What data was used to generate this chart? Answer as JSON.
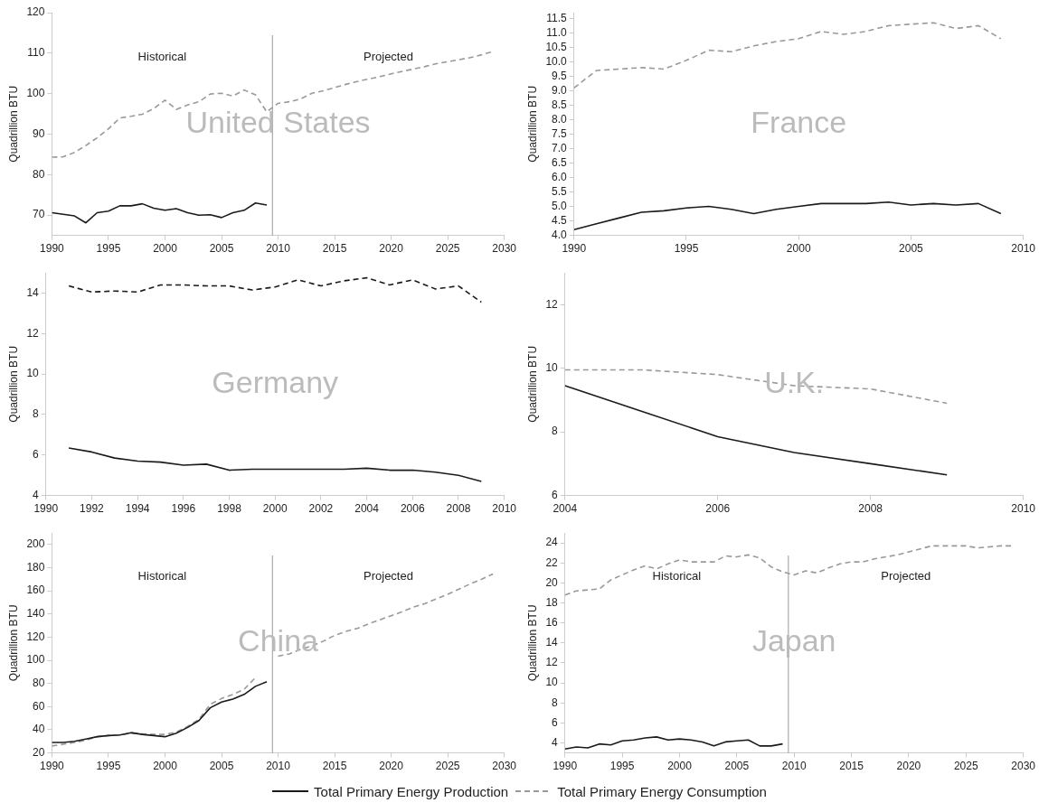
{
  "chart_data": [
    {
      "type": "line",
      "title": "United States",
      "ylabel": "Quadrillion BTU",
      "xlim": [
        1990,
        2030
      ],
      "xticks": [
        1990,
        1995,
        2000,
        2005,
        2010,
        2015,
        2020,
        2025,
        2030
      ],
      "ylim": [
        65,
        120
      ],
      "yticks": [
        70,
        80,
        90,
        100,
        110,
        120
      ],
      "grid": false,
      "legend": false,
      "marker": "none",
      "ref_lines": [
        {
          "axis": "x",
          "value": 2009.5,
          "color": "#999999"
        }
      ],
      "annotations": [
        "Historical",
        "Projected"
      ],
      "series": [
        {
          "color": "#1a1a1a",
          "line_style": "solid",
          "x": [
            1990,
            1991,
            1992,
            1993,
            1994,
            1995,
            1996,
            1997,
            1998,
            1999,
            2000,
            2001,
            2002,
            2003,
            2004,
            2005,
            2006,
            2007,
            2008,
            2009
          ],
          "values": [
            70.6,
            70.2,
            69.8,
            68.1,
            70.6,
            71.0,
            72.3,
            72.3,
            72.8,
            71.7,
            71.2,
            71.6,
            70.6,
            70.0,
            70.1,
            69.4,
            70.6,
            71.2,
            73.0,
            72.5
          ]
        },
        {
          "color": "#999999",
          "line_style": "dashed",
          "x": [
            1990,
            1991,
            1992,
            1993,
            1994,
            1995,
            1996,
            1997,
            1998,
            1999,
            2000,
            2001,
            2002,
            2003,
            2004,
            2005,
            2006,
            2007,
            2008,
            2009,
            2010,
            2011,
            2012,
            2013,
            2014,
            2015,
            2016,
            2017,
            2018,
            2019,
            2020,
            2021,
            2022,
            2023,
            2024,
            2025,
            2026,
            2027,
            2028,
            2029
          ],
          "values": [
            84.3,
            84.4,
            85.5,
            87.2,
            89.1,
            91.3,
            94.0,
            94.4,
            94.9,
            96.3,
            98.4,
            96.1,
            97.2,
            98.0,
            99.9,
            100.1,
            99.4,
            100.9,
            99.7,
            95.5,
            97.6,
            98.0,
            98.7,
            100.1,
            100.7,
            101.5,
            102.3,
            103.0,
            103.6,
            104.2,
            104.9,
            105.5,
            106.1,
            106.7,
            107.4,
            107.9,
            108.4,
            108.9,
            109.6,
            110.4
          ]
        }
      ]
    },
    {
      "type": "line",
      "title": "France",
      "ylabel": "Quadrillion BTU",
      "xlim": [
        1990,
        2010
      ],
      "xticks": [
        1990,
        1995,
        2000,
        2005,
        2010
      ],
      "ylim": [
        4,
        11.7
      ],
      "yticks": [
        {
          "value": 4,
          "label": "4.0"
        },
        {
          "value": 4.5,
          "label": "4.5"
        },
        {
          "value": 5,
          "label": "5.0"
        },
        {
          "value": 5.5,
          "label": "5.5"
        },
        {
          "value": 6,
          "label": "6.0"
        },
        {
          "value": 6.5,
          "label": "6.5"
        },
        {
          "value": 7,
          "label": "7.0"
        },
        {
          "value": 7.5,
          "label": "7.5"
        },
        {
          "value": 8,
          "label": "8.0"
        },
        {
          "value": 8.5,
          "label": "8.5"
        },
        {
          "value": 9,
          "label": "9.0"
        },
        {
          "value": 9.5,
          "label": "9.5"
        },
        {
          "value": 10,
          "label": "10.0"
        },
        {
          "value": 10.5,
          "label": "10.5"
        },
        {
          "value": 11,
          "label": "11.0"
        },
        {
          "value": 11.5,
          "label": "11.5"
        }
      ],
      "grid": false,
      "legend": false,
      "marker": "none",
      "series": [
        {
          "color": "#1a1a1a",
          "line_style": "solid",
          "x": [
            1990,
            1991,
            1992,
            1993,
            1994,
            1995,
            1996,
            1997,
            1998,
            1999,
            2000,
            2001,
            2002,
            2003,
            2004,
            2005,
            2006,
            2007,
            2008,
            2009
          ],
          "values": [
            4.2,
            4.4,
            4.6,
            4.8,
            4.85,
            4.95,
            5.0,
            4.9,
            4.75,
            4.9,
            5.0,
            5.1,
            5.1,
            5.1,
            5.15,
            5.05,
            5.1,
            5.05,
            5.1,
            4.75
          ]
        },
        {
          "color": "#999999",
          "line_style": "dashed",
          "x": [
            1990,
            1991,
            1992,
            1993,
            1994,
            1995,
            1996,
            1997,
            1998,
            1999,
            2000,
            2001,
            2002,
            2003,
            2004,
            2005,
            2006,
            2007,
            2008,
            2009
          ],
          "values": [
            9.1,
            9.7,
            9.75,
            9.8,
            9.75,
            10.05,
            10.4,
            10.35,
            10.55,
            10.7,
            10.8,
            11.05,
            10.95,
            11.05,
            11.25,
            11.3,
            11.35,
            11.15,
            11.25,
            10.8
          ]
        }
      ]
    },
    {
      "type": "line",
      "title": "Germany",
      "ylabel": "Quadrillion BTU",
      "xlim": [
        1990,
        2010
      ],
      "xticks": [
        1990,
        1992,
        1994,
        1996,
        1998,
        2000,
        2002,
        2004,
        2006,
        2008,
        2010
      ],
      "ylim": [
        4,
        15
      ],
      "yticks": [
        4,
        6,
        8,
        10,
        12,
        14
      ],
      "grid": false,
      "legend": false,
      "marker": "none",
      "series": [
        {
          "color": "#1a1a1a",
          "line_style": "solid",
          "x": [
            1991,
            1992,
            1993,
            1994,
            1995,
            1996,
            1997,
            1998,
            1999,
            2000,
            2001,
            2002,
            2003,
            2004,
            2005,
            2006,
            2007,
            2008,
            2009
          ],
          "values": [
            6.35,
            6.15,
            5.85,
            5.7,
            5.65,
            5.5,
            5.55,
            5.25,
            5.3,
            5.3,
            5.3,
            5.3,
            5.3,
            5.35,
            5.25,
            5.25,
            5.15,
            5.0,
            4.7
          ]
        },
        {
          "color": "#1a1a1a",
          "line_style": "dashed",
          "x": [
            1991,
            1992,
            1993,
            1994,
            1995,
            1996,
            1997,
            1998,
            1999,
            2000,
            2001,
            2002,
            2003,
            2004,
            2005,
            2006,
            2007,
            2008,
            2009
          ],
          "values": [
            14.35,
            14.05,
            14.1,
            14.05,
            14.4,
            14.4,
            14.35,
            14.35,
            14.15,
            14.3,
            14.65,
            14.35,
            14.6,
            14.75,
            14.4,
            14.65,
            14.2,
            14.35,
            13.55
          ]
        }
      ]
    },
    {
      "type": "line",
      "title": "U.K.",
      "ylabel": "Quadrillion BTU",
      "xlim": [
        2004,
        2010
      ],
      "xticks": [
        2004,
        2006,
        2008,
        2010
      ],
      "ylim": [
        6,
        13
      ],
      "yticks": [
        6,
        8,
        10,
        12
      ],
      "grid": false,
      "legend": false,
      "marker": "none",
      "series": [
        {
          "color": "#1a1a1a",
          "line_style": "solid",
          "x": [
            2004,
            2005,
            2006,
            2007,
            2008,
            2009
          ],
          "values": [
            9.45,
            8.65,
            7.85,
            7.35,
            7.0,
            6.65
          ]
        },
        {
          "color": "#999999",
          "line_style": "dashed",
          "x": [
            2004,
            2005,
            2006,
            2007,
            2008,
            2009
          ],
          "values": [
            9.95,
            9.95,
            9.8,
            9.45,
            9.35,
            8.9
          ]
        }
      ]
    },
    {
      "type": "line",
      "title": "China",
      "ylabel": "Quadrillion BTU",
      "xlim": [
        1990,
        2030
      ],
      "xticks": [
        1990,
        1995,
        2000,
        2005,
        2010,
        2015,
        2020,
        2025,
        2030
      ],
      "ylim": [
        20,
        210
      ],
      "yticks": [
        20,
        40,
        60,
        80,
        100,
        120,
        140,
        160,
        180,
        200
      ],
      "grid": false,
      "legend": false,
      "marker": "none",
      "ref_lines": [
        {
          "axis": "x",
          "value": 2009.5,
          "color": "#999999"
        }
      ],
      "annotations": [
        "Historical",
        "Projected"
      ],
      "series": [
        {
          "color": "#1a1a1a",
          "line_style": "solid",
          "x": [
            1990,
            1991,
            1992,
            1993,
            1994,
            1995,
            1996,
            1997,
            1998,
            1999,
            2000,
            2001,
            2002,
            2003,
            2004,
            2005,
            2006,
            2007,
            2008,
            2009
          ],
          "values": [
            29,
            29,
            30,
            32,
            34,
            35,
            35.5,
            37.5,
            36,
            35,
            34,
            37,
            42,
            48,
            59,
            64,
            66.5,
            70.5,
            77.5,
            81.5
          ]
        },
        {
          "color": "#999999",
          "line_style": "dashed",
          "x": [
            1990,
            1991,
            1992,
            1993,
            1994,
            1995,
            1996,
            1997,
            1998,
            1999,
            2000,
            2001,
            2002,
            2003,
            2004,
            2005,
            2006,
            2007,
            2008,
            2009,
            2010,
            2011,
            2012,
            2013,
            2014,
            2015,
            2016,
            2017,
            2018,
            2019,
            2020,
            2021,
            2022,
            2023,
            2024,
            2025,
            2026,
            2027,
            2028,
            2029
          ],
          "values": [
            26,
            27.5,
            29,
            31,
            34,
            35,
            35.5,
            37,
            36.5,
            36,
            36,
            38,
            43,
            49,
            62,
            67,
            70.5,
            75,
            85,
            null,
            103.5,
            105.5,
            109.5,
            112.5,
            116.5,
            121.5,
            125,
            127.5,
            131.5,
            135,
            138.5,
            142,
            146,
            149,
            153,
            157,
            161.5,
            166,
            170,
            174.5
          ]
        }
      ]
    },
    {
      "type": "line",
      "title": "Japan",
      "ylabel": "Quadrillion BTU",
      "xlim": [
        1990,
        2030
      ],
      "xticks": [
        1990,
        1995,
        2000,
        2005,
        2010,
        2015,
        2020,
        2025,
        2030
      ],
      "ylim": [
        3,
        25
      ],
      "yticks": [
        4,
        6,
        8,
        10,
        12,
        14,
        16,
        18,
        20,
        22,
        24
      ],
      "grid": false,
      "legend": "bottom",
      "marker": "none",
      "ref_lines": [
        {
          "axis": "x",
          "value": 2009.5,
          "color": "#999999"
        }
      ],
      "annotations": [
        "Historical",
        "Projected"
      ],
      "series": [
        {
          "name": "Total Primary Energy Production",
          "color": "#1a1a1a",
          "line_style": "solid",
          "x": [
            1990,
            1991,
            1992,
            1993,
            1994,
            1995,
            1996,
            1997,
            1998,
            1999,
            2000,
            2001,
            2002,
            2003,
            2004,
            2005,
            2006,
            2007,
            2008,
            2009
          ],
          "values": [
            3.4,
            3.6,
            3.5,
            3.9,
            3.8,
            4.2,
            4.3,
            4.5,
            4.6,
            4.3,
            4.4,
            4.3,
            4.1,
            3.7,
            4.1,
            4.2,
            4.3,
            3.7,
            3.7,
            3.9
          ]
        },
        {
          "name": "Total Primary Energy Consumption",
          "color": "#999999",
          "line_style": "dashed",
          "x": [
            1990,
            1991,
            1992,
            1993,
            1994,
            1995,
            1996,
            1997,
            1998,
            1999,
            2000,
            2001,
            2002,
            2003,
            2004,
            2005,
            2006,
            2007,
            2008,
            2009,
            2010,
            2011,
            2012,
            2013,
            2014,
            2015,
            2016,
            2017,
            2018,
            2019,
            2020,
            2021,
            2022,
            2023,
            2024,
            2025,
            2026,
            2027,
            2028,
            2029
          ],
          "values": [
            18.8,
            19.2,
            19.3,
            19.4,
            20.3,
            20.8,
            21.3,
            21.7,
            21.4,
            21.9,
            22.3,
            22.1,
            22.1,
            22.1,
            22.7,
            22.6,
            22.8,
            22.5,
            21.6,
            21.1,
            20.8,
            21.2,
            21.0,
            21.5,
            21.9,
            22.1,
            22.1,
            22.4,
            22.6,
            22.8,
            23.1,
            23.4,
            23.7,
            23.7,
            23.7,
            23.7,
            23.5,
            23.6,
            23.7,
            23.7
          ]
        }
      ]
    }
  ]
}
